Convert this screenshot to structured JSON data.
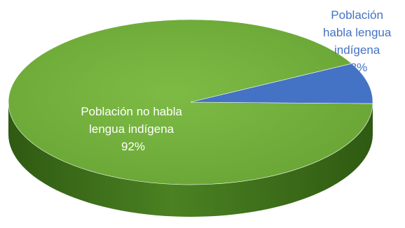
{
  "chart_data": {
    "type": "pie",
    "style": "3d",
    "title": "",
    "slices": [
      {
        "label_lines": [
          "Población no habla",
          "lengua indígena",
          "92%"
        ],
        "value": 92,
        "color": "#71ad3c",
        "side_color": "#3f6e1c"
      },
      {
        "label_lines": [
          "Población",
          "habla lengua",
          "indígena",
          "8%"
        ],
        "value": 8,
        "color": "#4472c4",
        "side_color": "#2f528f"
      }
    ]
  }
}
